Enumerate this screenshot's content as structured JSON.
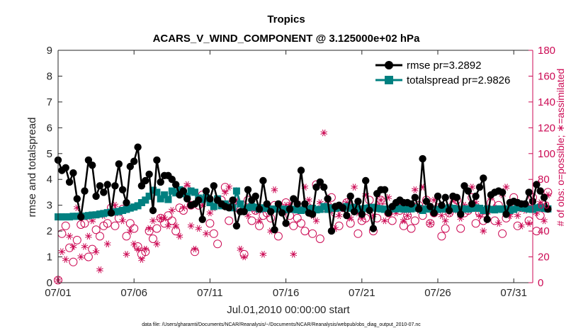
{
  "chart_data": {
    "type": "line",
    "title": "Tropics",
    "subtitle": "ACARS_V_WIND_COMPONENT @ 3.125000e+02 hPa",
    "xlabel": "Jul.01,2010 00:00:00 start",
    "ylabel": "rmse and totalspread",
    "y2label": "# of obs: o=possible; ∗=assimilated",
    "footnote": "data file: /Users/gharamti/Documents/NCAR/Reanalysis/~/Documents/NCAR/Reanalysis/webpub/obs_diag_output_2010-07.nc",
    "xlim": [
      1,
      32.25
    ],
    "ylim": [
      0,
      9
    ],
    "y2lim": [
      0,
      180
    ],
    "x_ticks": [
      1,
      6,
      11,
      16,
      21,
      26,
      31
    ],
    "x_tick_labels": [
      "07/01",
      "07/06",
      "07/11",
      "07/16",
      "07/21",
      "07/26",
      "07/31"
    ],
    "y_ticks": [
      0,
      1,
      2,
      3,
      4,
      5,
      6,
      7,
      8,
      9
    ],
    "y_tick_labels": [
      "0",
      "1",
      "2",
      "3",
      "4",
      "5",
      "6",
      "7",
      "8",
      "9"
    ],
    "y2_ticks": [
      0,
      20,
      40,
      60,
      80,
      100,
      120,
      140,
      160,
      180
    ],
    "y2_tick_labels": [
      "0",
      "20",
      "40",
      "60",
      "80",
      "100",
      "120",
      "140",
      "160",
      "180"
    ],
    "legend_position": "top-right",
    "colors": {
      "rmse": "#000000",
      "totalspread": "#008080",
      "obs": "#cc0a54",
      "axis": "#262626"
    },
    "series": [
      {
        "name": "rmse pr=3.2892",
        "marker": "circle",
        "color": "#000000",
        "x_start": 1,
        "dx": 0.25,
        "values": [
          4.75,
          4.35,
          4.45,
          3.9,
          4.25,
          3.25,
          2.55,
          3.55,
          4.75,
          4.55,
          3.35,
          3.75,
          3.5,
          3.8,
          2.7,
          3.75,
          4.6,
          3.6,
          3.1,
          4.5,
          4.7,
          5.25,
          3.75,
          3.95,
          4.2,
          2.8,
          4.75,
          3.9,
          4.15,
          4.15,
          4.0,
          3.8,
          3.4,
          3.55,
          3.25,
          3.0,
          3.05,
          3.2,
          2.45,
          3.55,
          3.25,
          3.75,
          3.2,
          3.05,
          2.95,
          2.9,
          3.2,
          2.2,
          2.75,
          2.75,
          3.6,
          3.2,
          3.35,
          2.85,
          3.95,
          3.05,
          2.75,
          2.05,
          3.05,
          2.7,
          2.3,
          2.85,
          3.25,
          3.05,
          4.35,
          3.05,
          2.7,
          2.65,
          3.7,
          3.9,
          3.7,
          3.25,
          2.0,
          2.95,
          3.0,
          2.9,
          2.6,
          3.35,
          2.75,
          3.15,
          2.65,
          3.95,
          2.8,
          2.1,
          3.45,
          3.6,
          3.6,
          2.7,
          2.95,
          3.1,
          3.2,
          3.1,
          3.1,
          3.05,
          3.3,
          2.85,
          4.8,
          3.15,
          2.95,
          2.7,
          3.35,
          3.0,
          3.3,
          2.8,
          3.35,
          3.3,
          2.65,
          3.75,
          3.55,
          3.05,
          3.35,
          3.7,
          4.05,
          2.45,
          3.4,
          3.5,
          3.55,
          3.5,
          2.65,
          3.1,
          3.15,
          3.1,
          3.05,
          3.05,
          3.5,
          3.15,
          3.8,
          3.55,
          3.3,
          2.85
        ]
      },
      {
        "name": "totalspread pr=2.9826",
        "marker": "square",
        "color": "#008080",
        "x_start": 1,
        "dx": 0.25,
        "values": [
          2.55,
          2.55,
          2.55,
          2.55,
          2.57,
          2.57,
          2.58,
          2.58,
          2.6,
          2.62,
          2.63,
          2.66,
          2.68,
          2.71,
          2.73,
          2.74,
          2.76,
          2.8,
          2.84,
          2.89,
          2.93,
          2.98,
          3.1,
          3.2,
          3.35,
          3.58,
          3.5,
          3.25,
          3.4,
          3.22,
          3.55,
          3.48,
          3.6,
          3.45,
          3.35,
          3.55,
          3.5,
          3.28,
          3.22,
          3.3,
          3.1,
          2.95,
          3.25,
          2.98,
          3.05,
          2.95,
          2.9,
          3.55,
          3.05,
          2.85,
          2.9,
          2.95,
          2.92,
          2.85,
          2.9,
          2.88,
          2.85,
          2.85,
          2.86,
          2.85,
          2.83,
          2.85,
          2.84,
          2.82,
          2.8,
          2.84,
          2.85,
          2.88,
          2.82,
          2.84,
          2.95,
          2.84,
          2.9,
          2.88,
          2.92,
          2.9,
          2.95,
          2.88,
          2.92,
          2.85,
          2.86,
          2.88,
          2.9,
          2.92,
          2.88,
          2.86,
          2.84,
          2.85,
          2.86,
          2.86,
          2.88,
          2.85,
          2.85,
          2.86,
          2.9,
          2.88,
          2.8,
          2.86,
          2.85,
          2.82,
          2.84,
          2.86,
          2.85,
          2.9,
          2.88,
          2.85,
          2.82,
          2.86,
          2.85,
          2.88,
          2.9,
          2.88,
          2.8,
          2.86,
          2.84,
          2.82,
          2.86,
          2.84,
          2.86,
          2.8,
          2.84,
          2.9,
          2.92,
          2.88,
          2.85,
          2.84,
          2.9,
          2.92,
          2.88,
          2.86
        ]
      },
      {
        "name": "# of obs possible",
        "axis": "right",
        "marker": "open-circle",
        "color": "#cc0a54",
        "x_start": 1,
        "dx": 0.25,
        "values": [
          2,
          38,
          44,
          27,
          16,
          33,
          45,
          46,
          20,
          26,
          41,
          36,
          44,
          46,
          58,
          44,
          50,
          57,
          36,
          46,
          42,
          28,
          22,
          24,
          40,
          34,
          42,
          50,
          46,
          52,
          48,
          40,
          58,
          56,
          72,
          60,
          24,
          60,
          68,
          66,
          46,
          38,
          30,
          64,
          74,
          48,
          62,
          58,
          56,
          22,
          64,
          48,
          56,
          44,
          52,
          54,
          50,
          60,
          36,
          56,
          62,
          52,
          44,
          50,
          46,
          40,
          58,
          38,
          76,
          34,
          58,
          60,
          66,
          54,
          44,
          58,
          62,
          46,
          58,
          38,
          48,
          50,
          64,
          40,
          50,
          64,
          58,
          54,
          48,
          60,
          56,
          44,
          52,
          42,
          48,
          60,
          52,
          64,
          46,
          54,
          58,
          36,
          42,
          54,
          60,
          64,
          42,
          54,
          56,
          66,
          46,
          54,
          48,
          56,
          62,
          48,
          60,
          38,
          50,
          56,
          66,
          44,
          58,
          60,
          48,
          66,
          40,
          52,
          58,
          70
        ]
      },
      {
        "name": "# of obs assimilated",
        "axis": "right",
        "marker": "asterisk",
        "color": "#cc0a54",
        "x_start": 1,
        "dx": 0.25,
        "values": [
          2,
          24,
          18,
          36,
          28,
          58,
          20,
          28,
          36,
          48,
          24,
          10,
          52,
          30,
          56,
          60,
          54,
          48,
          22,
          40,
          30,
          26,
          18,
          26,
          42,
          48,
          30,
          50,
          50,
          44,
          56,
          44,
          36,
          58,
          76,
          44,
          26,
          42,
          60,
          38,
          54,
          58,
          62,
          60,
          70,
          74,
          60,
          64,
          26,
          20,
          52,
          58,
          56,
          48,
          22,
          60,
          40,
          72,
          56,
          56,
          60,
          60,
          22,
          62,
          58,
          74,
          64,
          52,
          48,
          62,
          116,
          60,
          56,
          42,
          52,
          58,
          62,
          50,
          74,
          54,
          50,
          68,
          56,
          52,
          60,
          64,
          48,
          66,
          58,
          54,
          60,
          48,
          52,
          60,
          72,
          56,
          74,
          62,
          46,
          64,
          58,
          52,
          48,
          54,
          64,
          56,
          50,
          60,
          58,
          74,
          62,
          52,
          40,
          54,
          66,
          58,
          46,
          68,
          74,
          52,
          58,
          52,
          44,
          56,
          46,
          58,
          54,
          62,
          48,
          68
        ]
      }
    ]
  }
}
